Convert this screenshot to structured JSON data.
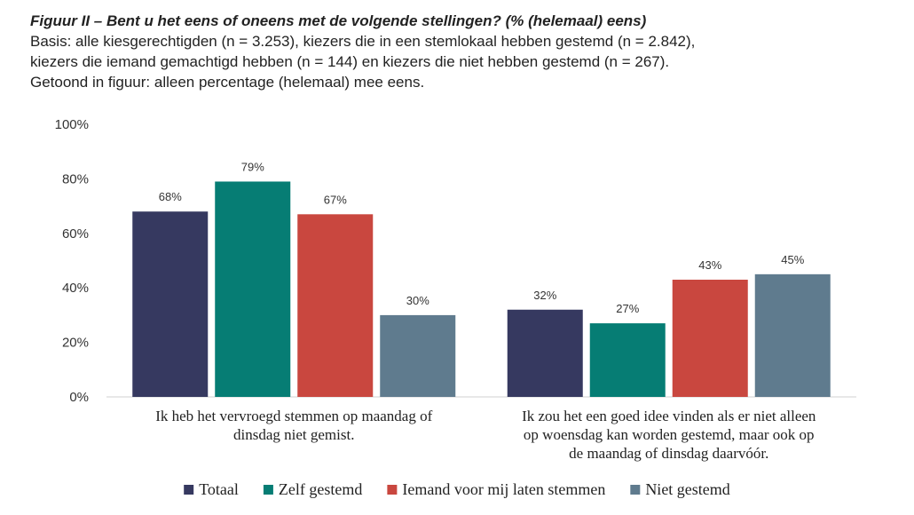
{
  "header": {
    "title": "Figuur II – Bent u het eens of oneens met de volgende stellingen? (% (helemaal) eens)",
    "subtitle_lines": [
      "Basis: alle kiesgerechtigden (n = 3.253), kiezers die in een stemlokaal hebben gestemd (n = 2.842),",
      "kiezers die iemand gemachtigd hebben (n = 144) en kiezers die niet hebben gestemd (n = 267).",
      "Getoond in figuur: alleen percentage (helemaal) mee eens."
    ]
  },
  "chart_data": {
    "type": "bar",
    "title": "Figuur II – Bent u het eens of oneens met de volgende stellingen? (% (helemaal) eens)",
    "xlabel": "",
    "ylabel": "",
    "ylim": [
      0,
      100
    ],
    "yticks": [
      0,
      20,
      40,
      60,
      80,
      100
    ],
    "ytick_labels": [
      "0%",
      "20%",
      "40%",
      "60%",
      "80%",
      "100%"
    ],
    "grid": false,
    "legend_position": "bottom",
    "categories": [
      [
        "Ik heb het vervroegd stemmen op maandag of",
        "dinsdag niet gemist."
      ],
      [
        "Ik zou het een goed idee vinden als er niet alleen",
        "op woensdag kan worden gestemd, maar ook op",
        "de maandag of dinsdag daarvóór."
      ]
    ],
    "series": [
      {
        "name": "Totaal",
        "color": "#363960",
        "values": [
          68,
          32
        ],
        "labels": [
          "68%",
          "32%"
        ]
      },
      {
        "name": "Zelf gestemd",
        "color": "#067d74",
        "values": [
          79,
          27
        ],
        "labels": [
          "79%",
          "27%"
        ]
      },
      {
        "name": "Iemand voor mij laten stemmen",
        "color": "#c9473f",
        "values": [
          67,
          43
        ],
        "labels": [
          "67%",
          "43%"
        ]
      },
      {
        "name": "Niet gestemd",
        "color": "#5f7b8e",
        "values": [
          30,
          45
        ],
        "labels": [
          "30%",
          "45%"
        ]
      }
    ]
  }
}
